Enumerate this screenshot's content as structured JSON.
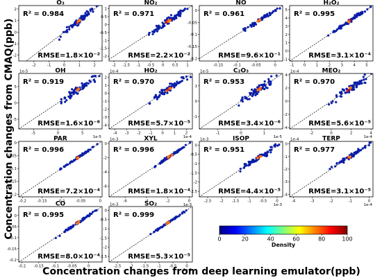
{
  "figure": {
    "ylabel": "Concentration changes from CMAQ(ppb)",
    "xlabel": "Concentration changes from deep learning emulator(ppb)"
  },
  "colorbar": {
    "label": "Density",
    "min": 0,
    "max": 100,
    "ticks": [
      0,
      20,
      40,
      60,
      80,
      100
    ],
    "colors": [
      "#00007f",
      "#0000ff",
      "#007fff",
      "#00ffff",
      "#7fff7f",
      "#ffff00",
      "#ff7f00",
      "#ff0000",
      "#7f0000"
    ]
  },
  "chart_data": [
    {
      "type": "scatter",
      "title": "O₃",
      "r2": "R² = 0.984",
      "rmse": "RMSE=1.8×10⁻²",
      "xlim": [
        -3,
        2.5
      ],
      "ylim": [
        -2.5,
        2.3
      ],
      "xticks": [
        -2,
        -1,
        0,
        1,
        2
      ],
      "yticks": [
        -2,
        -1,
        0,
        1,
        2
      ],
      "x_exp": "",
      "y_exp": "",
      "spread": 0.08
    },
    {
      "type": "scatter",
      "title": "NO₂",
      "r2": "R² = 0.971",
      "rmse": "RMSE=2.2×10⁻²",
      "xlim": [
        -2.2,
        1.2
      ],
      "ylim": [
        -2.3,
        1.2
      ],
      "xticks": [
        -2.0,
        -1.5,
        -1.0,
        -0.5,
        0.0,
        0.5,
        1.0
      ],
      "yticks": [
        -2.0,
        -1.5,
        -1.0,
        -0.5,
        0.0,
        0.5,
        1.0
      ],
      "x_exp": "",
      "y_exp": "",
      "spread": 0.1
    },
    {
      "type": "scatter",
      "title": "NO",
      "r2": "R² = 0.961",
      "rmse": "RMSE=9.6×10⁻¹",
      "xlim": [
        -0.2,
        0.02
      ],
      "ylim": [
        -0.21,
        0.02
      ],
      "xticks": [
        -0.15,
        -0.1,
        -0.05,
        0.0
      ],
      "yticks": [
        -0.2,
        -0.15,
        -0.1,
        -0.05,
        0.0
      ],
      "x_exp": "",
      "y_exp": "",
      "spread": 0.05
    },
    {
      "type": "scatter",
      "title": "H₂O₂",
      "r2": "R² = 0.995",
      "rmse": "RMSE=3.1×10⁻⁴",
      "xlim": [
        -1.2,
        5.5
      ],
      "ylim": [
        -1.2,
        5.5
      ],
      "xticks": [
        -1,
        0,
        1,
        2,
        3,
        4,
        5
      ],
      "yticks": [
        -1,
        0,
        1,
        2,
        3,
        4,
        5
      ],
      "x_exp": "",
      "y_exp": "",
      "spread": 0.05
    },
    {
      "type": "scatter",
      "title": "OH",
      "r2": "R² = 0.919",
      "rmse": "RMSE=1.6×10⁻⁶",
      "xlim": [
        -8,
        9
      ],
      "ylim": [
        -8,
        9
      ],
      "xticks": [
        -5,
        0,
        5
      ],
      "yticks": [
        -5,
        0,
        5
      ],
      "x_exp": "1e-5",
      "y_exp": "1e-5",
      "spread": 0.1
    },
    {
      "type": "scatter",
      "title": "HO₂",
      "r2": "R² = 0.970",
      "rmse": "RMSE=5.7×10⁻⁵",
      "xlim": [
        -4.5,
        2.5
      ],
      "ylim": [
        -4.5,
        2.5
      ],
      "xticks": [
        -4,
        -3,
        -2,
        -1,
        0,
        1,
        2
      ],
      "yticks": [
        -4,
        -3,
        -2,
        -1,
        0,
        1,
        2
      ],
      "x_exp": "1e-4",
      "y_exp": "1e-4",
      "spread": 0.1
    },
    {
      "type": "scatter",
      "title": "C₂O₃",
      "r2": "R² = 0.953",
      "rmse": "RMSE=3.4×10⁻⁶",
      "xlim": [
        -1.8,
        1.8
      ],
      "ylim": [
        -1.8,
        1.8
      ],
      "xticks": [
        -1,
        0,
        1
      ],
      "yticks": [
        -1,
        0,
        1
      ],
      "x_exp": "1e-5",
      "y_exp": "1e-5",
      "spread": 0.12
    },
    {
      "type": "scatter",
      "title": "MEO₂",
      "r2": "R² = 0.970",
      "rmse": "RMSE=5.6×10⁻⁵",
      "xlim": [
        -4.2,
        4.2
      ],
      "ylim": [
        -4.2,
        4.2
      ],
      "xticks": [
        -2,
        0,
        2,
        4
      ],
      "yticks": [
        -4,
        -2,
        0,
        2,
        4
      ],
      "x_exp": "1e-4",
      "y_exp": "1e-4",
      "spread": 0.1
    },
    {
      "type": "scatter",
      "title": "PAR",
      "r2": "R² = 0.996",
      "rmse": "RMSE=7.2×10⁻⁴",
      "xlim": [
        -0.21,
        0.005
      ],
      "ylim": [
        -0.21,
        0.005
      ],
      "xticks": [
        -0.2,
        -0.15,
        -0.1,
        -0.05,
        0.0
      ],
      "yticks": [
        -0.2,
        -0.15,
        -0.1,
        -0.05,
        0.0
      ],
      "x_exp": "",
      "y_exp": "",
      "spread": 0.03
    },
    {
      "type": "scatter",
      "title": "XYL",
      "r2": "R² = 0.996",
      "rmse": "RMSE=1.8×10⁻⁴",
      "xlim": [
        -7.5,
        0.3
      ],
      "ylim": [
        -7.5,
        0.3
      ],
      "xticks": [
        -6,
        -4,
        -2,
        0
      ],
      "yticks": [
        -6,
        -4,
        -2,
        0
      ],
      "x_exp": "1e-3",
      "y_exp": "1e-3",
      "spread": 0.03
    },
    {
      "type": "scatter",
      "title": "ISOP",
      "r2": "R² = 0.951",
      "rmse": "RMSE=4.4×10⁻⁵",
      "xlim": [
        -2.8,
        0.2
      ],
      "ylim": [
        -2.8,
        0.2
      ],
      "xticks": [
        -2.5,
        -2.0,
        -1.5,
        -1.0,
        -0.5,
        0.0
      ],
      "yticks": [
        -2.5,
        -2.0,
        -1.5,
        -1.0,
        -0.5,
        0.0
      ],
      "x_exp": "1e-3",
      "y_exp": "1e-3",
      "spread": 0.08
    },
    {
      "type": "scatter",
      "title": "TERP",
      "r2": "R² = 0.977",
      "rmse": "RMSE=3.1×10⁻⁵",
      "xlim": [
        -4.2,
        0.2
      ],
      "ylim": [
        -4.2,
        0.2
      ],
      "xticks": [
        -4,
        -3,
        -2,
        -1,
        0
      ],
      "yticks": [
        -4,
        -3,
        -2,
        -1,
        0
      ],
      "x_exp": "1e-4",
      "y_exp": "1e-4",
      "spread": 0.06
    },
    {
      "type": "scatter",
      "title": "CO",
      "r2": "R² = 0.995",
      "rmse": "RMSE=8.0×10⁻⁴",
      "xlim": [
        -0.21,
        0.04
      ],
      "ylim": [
        -0.21,
        0.04
      ],
      "xticks": [
        -0.2,
        -0.15,
        -0.1,
        -0.05,
        0.0
      ],
      "yticks": [
        -0.2,
        -0.15,
        -0.1,
        -0.05,
        0.0
      ],
      "x_exp": "",
      "y_exp": "",
      "spread": 0.03
    },
    {
      "type": "scatter",
      "title": "SO₂",
      "r2": "R² = 0.999",
      "rmse": "RMSE=5.3×10⁻⁵",
      "xlim": [
        -2.8,
        0.2
      ],
      "ylim": [
        -2.8,
        0.2
      ],
      "xticks": [
        -2.5,
        -2.0,
        -1.5,
        -1.0,
        -0.5,
        0.0
      ],
      "yticks": [
        -2.5,
        -2.0,
        -1.5,
        -1.0,
        -0.5,
        0.0
      ],
      "x_exp": "1e-3",
      "y_exp": "1e-3",
      "spread": 0.02
    }
  ]
}
